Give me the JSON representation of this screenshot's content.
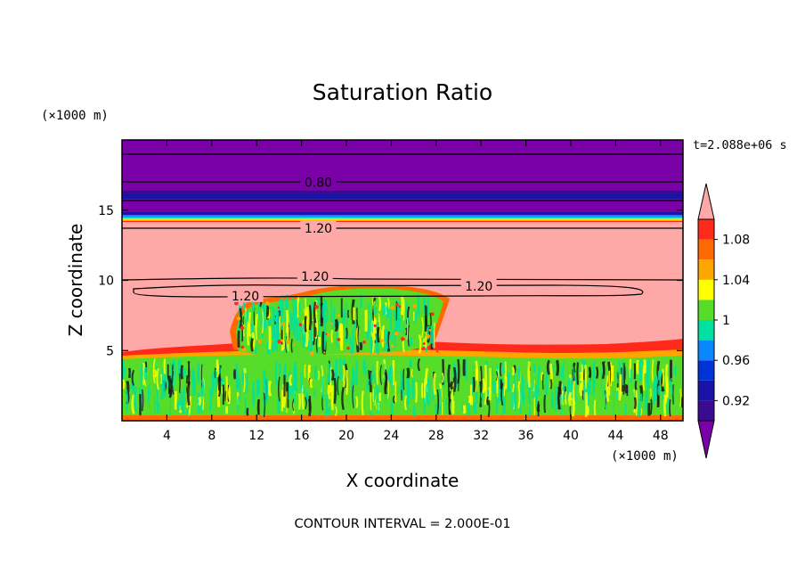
{
  "chart_data": {
    "type": "contour",
    "title": "Saturation Ratio",
    "xlabel": "X coordinate",
    "ylabel": "Z coordinate",
    "x_unit": "(×1000 m)",
    "y_unit": "(×1000 m)",
    "time_label": "t=2.088e+06 s",
    "footer": "CONTOUR INTERVAL = 2.000E-01",
    "xlim": [
      0,
      50
    ],
    "ylim": [
      0,
      20
    ],
    "x_ticks": [
      4,
      8,
      12,
      16,
      20,
      24,
      28,
      32,
      36,
      40,
      44,
      48
    ],
    "y_ticks": [
      5,
      10,
      15
    ],
    "contour_labels": [
      {
        "text": "0.80",
        "x": 17.5,
        "z": 17.0
      },
      {
        "text": "1.20",
        "x": 17.5,
        "z": 13.7
      },
      {
        "text": "1.20",
        "x": 17.2,
        "z": 10.3
      },
      {
        "text": "1.20",
        "x": 11.0,
        "z": 8.9
      },
      {
        "text": "1.20",
        "x": 31.8,
        "z": 9.6
      }
    ],
    "colorbar": {
      "levels": [
        0.9,
        0.92,
        0.94,
        0.96,
        0.98,
        1.0,
        1.02,
        1.04,
        1.06,
        1.08,
        1.1
      ],
      "tick_labels": [
        "0.92",
        "0.96",
        "1",
        "1.04",
        "1.08"
      ],
      "colors": [
        "#3a0a8f",
        "#1a13a8",
        "#0033d6",
        "#0a86ff",
        "#00e0a0",
        "#55dd2a",
        "#ffff00",
        "#ffa500",
        "#ff6a00",
        "#ff2a1a"
      ],
      "under_color": "#7a00a8",
      "over_color": "#ffa8a8"
    },
    "layers": [
      {
        "region": "upper dry layer",
        "z_range": [
          14.8,
          20
        ],
        "value": "< 0.90"
      },
      {
        "region": "saturated layer",
        "z_range": [
          5.3,
          14.2
        ],
        "value": "> 1.10"
      },
      {
        "region": "boundary layer",
        "z_range": [
          0,
          5.3
        ],
        "value": "0.98–1.02"
      },
      {
        "region": "cloud tower",
        "x_range": [
          8,
          30
        ],
        "z_range": [
          5,
          10
        ],
        "value": "0.98–1.02"
      }
    ]
  }
}
